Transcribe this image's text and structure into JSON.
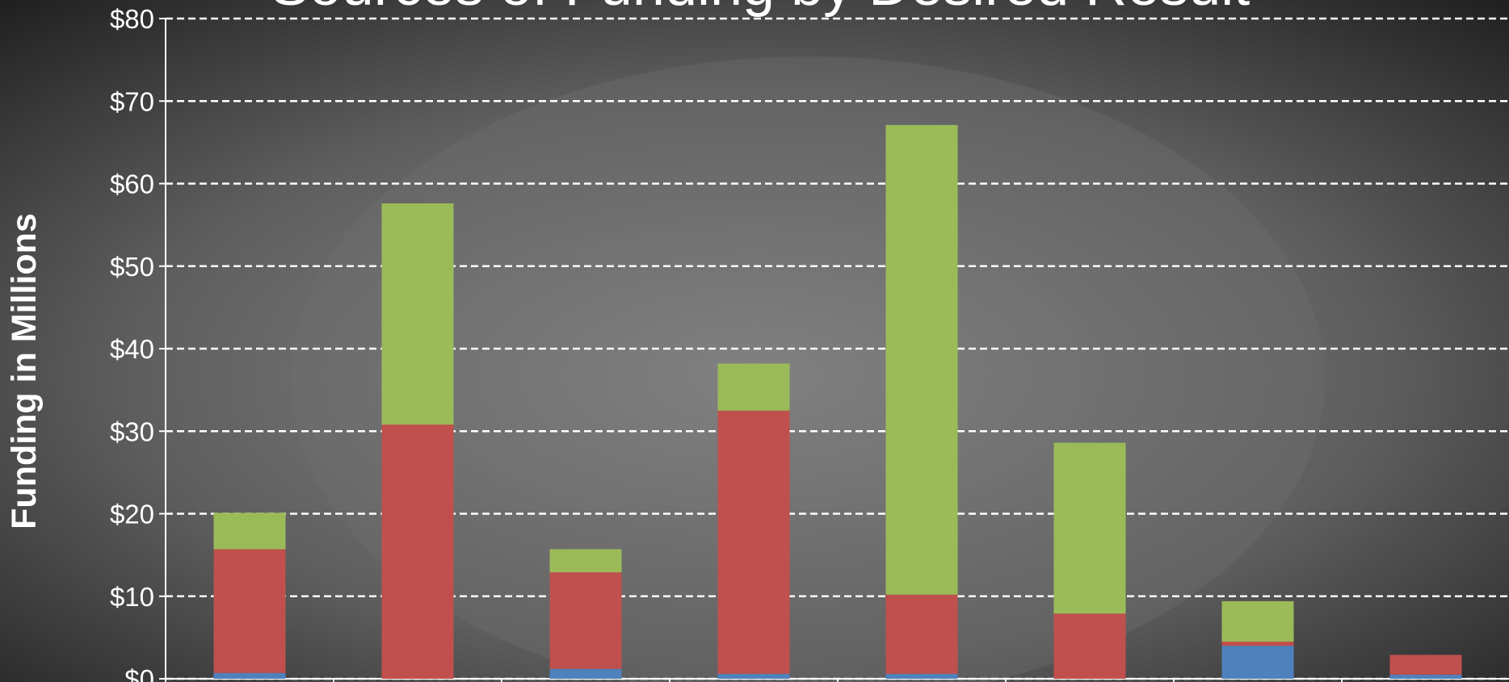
{
  "chart_data": {
    "type": "stacked_bar",
    "title": "Sources of Funding by Desired Result",
    "y_label": "Funding in Millions",
    "categories": [
      null,
      null,
      null,
      null,
      null,
      null,
      null,
      null
    ],
    "series": [
      {
        "color": "#4f81bd",
        "values": [
          0.7,
          0,
          1.2,
          0.6,
          0.6,
          0,
          4.0,
          0.5
        ]
      },
      {
        "color": "#c0504d",
        "values": [
          15.0,
          30.8,
          11.7,
          31.9,
          9.6,
          7.9,
          0.5,
          2.4
        ]
      },
      {
        "color": "#9bbb59",
        "values": [
          4.4,
          26.8,
          2.8,
          5.7,
          56.9,
          20.7,
          4.9,
          0
        ]
      }
    ],
    "ylim": [
      0,
      80
    ],
    "yticks": [
      {
        "value": 0,
        "label": "$0"
      },
      {
        "value": 10,
        "label": "$10"
      },
      {
        "value": 20,
        "label": "$20"
      },
      {
        "value": 30,
        "label": "$30"
      },
      {
        "value": 40,
        "label": "$40"
      },
      {
        "value": 50,
        "label": "$50"
      },
      {
        "value": 60,
        "label": "$60"
      },
      {
        "value": 70,
        "label": "$70"
      },
      {
        "value": 80,
        "label": "$80"
      }
    ],
    "grid": true
  }
}
